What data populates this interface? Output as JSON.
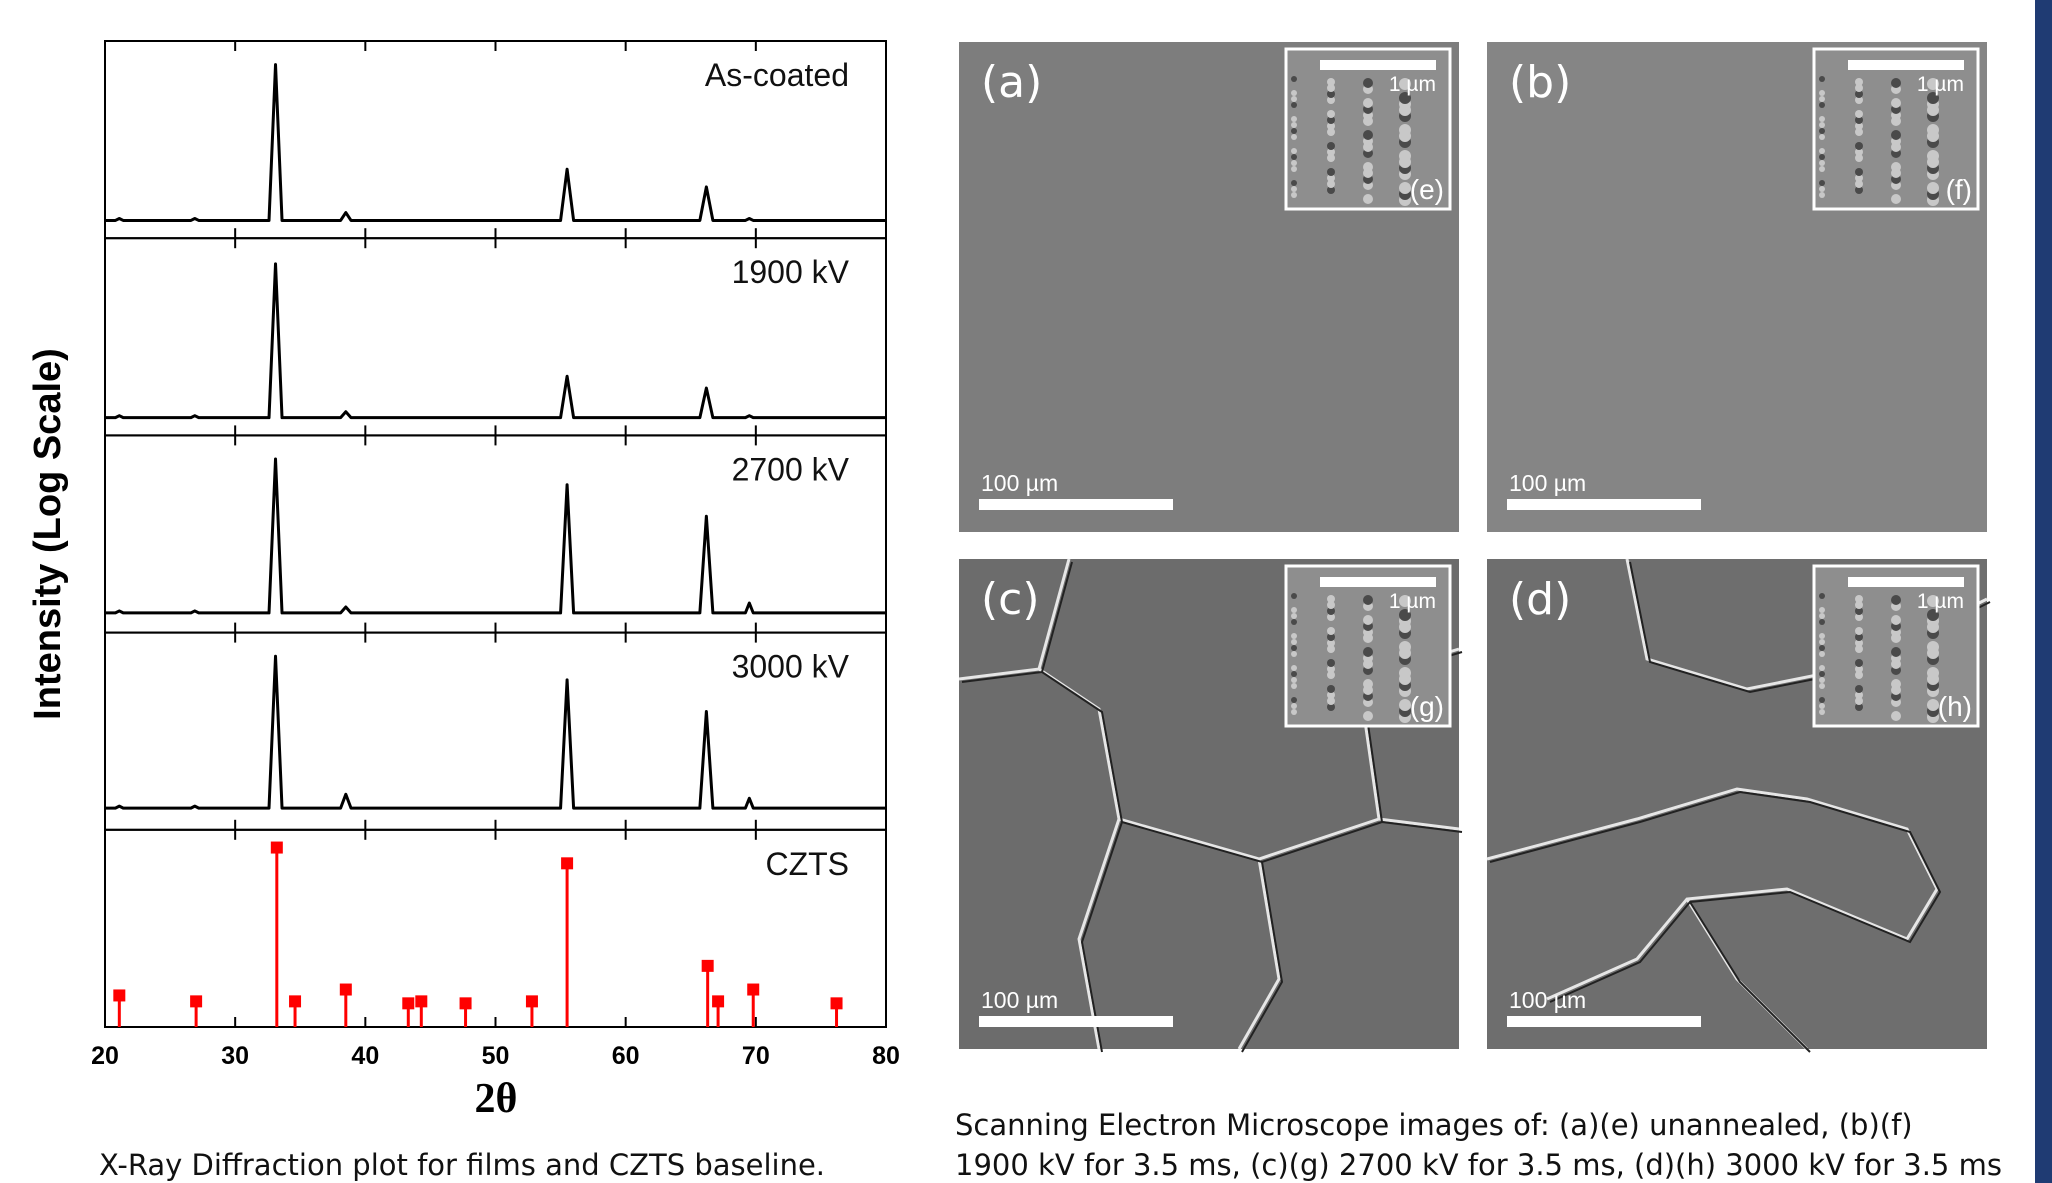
{
  "chart_data": {
    "type": "line",
    "xlabel": "2θ",
    "ylabel": "Intensity (Log Scale)",
    "xlim": [
      20,
      80
    ],
    "xticks": [
      20,
      30,
      40,
      50,
      60,
      70,
      80
    ],
    "ylim": [
      0,
      100
    ],
    "x": [
      20,
      20.8,
      21.1,
      21.4,
      26.6,
      26.9,
      27.2,
      32.6,
      33.1,
      33.6,
      38.1,
      38.5,
      38.9,
      55.0,
      55.5,
      56.0,
      65.7,
      66.2,
      66.7,
      69.2,
      69.5,
      69.8,
      80
    ],
    "series": [
      {
        "name": "As-coated",
        "color": "#000000",
        "values": [
          9,
          9,
          10,
          9,
          9,
          10,
          9,
          9,
          88,
          9,
          9,
          13,
          9,
          9,
          35,
          9,
          9,
          26,
          9,
          9,
          10,
          9,
          9
        ]
      },
      {
        "name": "1900 kV",
        "color": "#000000",
        "values": [
          9,
          9,
          10,
          9,
          9,
          10,
          9,
          9,
          87,
          9,
          9,
          12,
          9,
          9,
          30,
          9,
          9,
          24,
          9,
          9,
          10,
          9,
          9
        ]
      },
      {
        "name": "2700 kV",
        "color": "#000000",
        "values": [
          10,
          10,
          11,
          10,
          10,
          11,
          10,
          10,
          88,
          10,
          10,
          13,
          10,
          10,
          75,
          10,
          10,
          59,
          10,
          10,
          15,
          10,
          10
        ]
      },
      {
        "name": "3000 kV",
        "color": "#000000",
        "values": [
          11,
          11,
          12,
          11,
          11,
          12,
          11,
          11,
          88,
          11,
          11,
          18,
          11,
          11,
          76,
          11,
          11,
          60,
          11,
          11,
          16,
          11,
          11
        ]
      }
    ],
    "reference": {
      "type": "stem",
      "name": "CZTS",
      "color": "#ff0000",
      "x": [
        21.1,
        27,
        33.2,
        34.6,
        38.5,
        43.3,
        44.3,
        47.7,
        52.8,
        55.5,
        66.3,
        67.1,
        69.8,
        76.2
      ],
      "values": [
        16,
        13,
        91,
        13,
        19,
        12,
        13,
        12,
        13,
        83,
        31,
        13,
        19,
        12
      ]
    }
  },
  "chart_caption": "X-Ray Diffraction plot for films and CZTS baseline.",
  "sem_panels": [
    {
      "label": "(a)",
      "inset_label": "(e)",
      "scale_label": "100 µm",
      "inset_scale_label": "1 µm"
    },
    {
      "label": "(b)",
      "inset_label": "(f)",
      "scale_label": "100 µm",
      "inset_scale_label": "1 µm"
    },
    {
      "label": "(c)",
      "inset_label": "(g)",
      "scale_label": "100 µm",
      "inset_scale_label": "1 µm"
    },
    {
      "label": "(d)",
      "inset_label": "(h)",
      "scale_label": "100 µm",
      "inset_scale_label": "1 µm"
    }
  ],
  "sem_caption": [
    "Scanning Electron Microscope images of: (a)(e) unannealed, (b)(f)",
    "1900 kV for 3.5 ms, (c)(g) 2700 kV for 3.5 ms, (d)(h) 3000 kV for 3.5 ms"
  ]
}
